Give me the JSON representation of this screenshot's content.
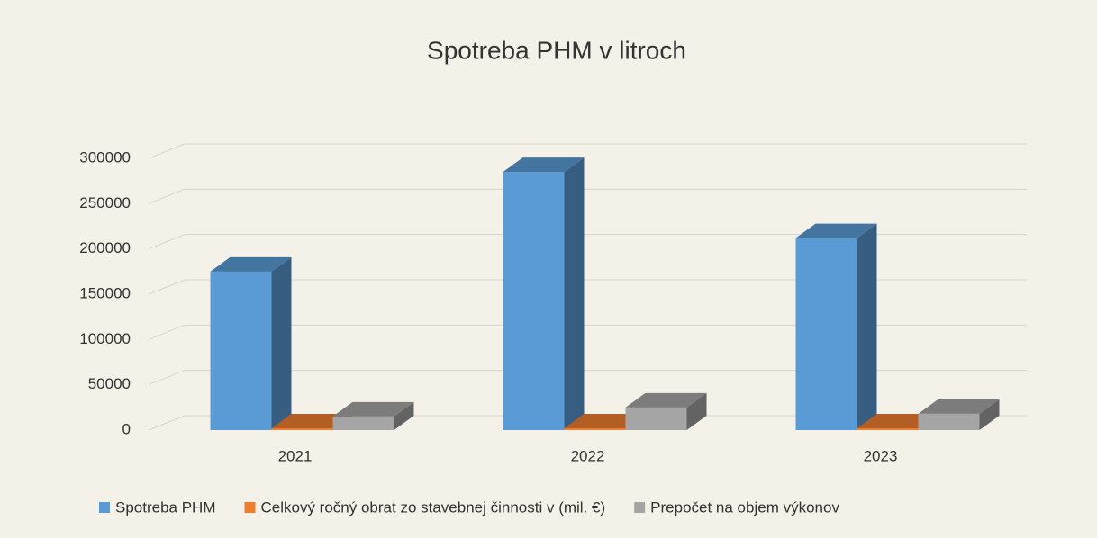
{
  "chart_data": {
    "type": "bar3d",
    "title": "Spotreba PHM v litroch",
    "categories": [
      "2021",
      "2022",
      "2023"
    ],
    "series": [
      {
        "name": "Spotreba PHM",
        "color": "#5b9bd5",
        "values": [
          175000,
          285000,
          212000
        ]
      },
      {
        "name": "Celkový ročný obrat zo stavebnej činnosti v (mil. €)",
        "color": "#ed7d31",
        "values": [
          2000,
          2000,
          2000
        ]
      },
      {
        "name": "Prepočet na objem výkonov",
        "color": "#a5a5a5",
        "values": [
          15000,
          25000,
          18000
        ]
      }
    ],
    "ylim": [
      0,
      300000
    ],
    "yticks": [
      0,
      50000,
      100000,
      150000,
      200000,
      250000,
      300000
    ],
    "grid": true,
    "legend": "bottom"
  }
}
